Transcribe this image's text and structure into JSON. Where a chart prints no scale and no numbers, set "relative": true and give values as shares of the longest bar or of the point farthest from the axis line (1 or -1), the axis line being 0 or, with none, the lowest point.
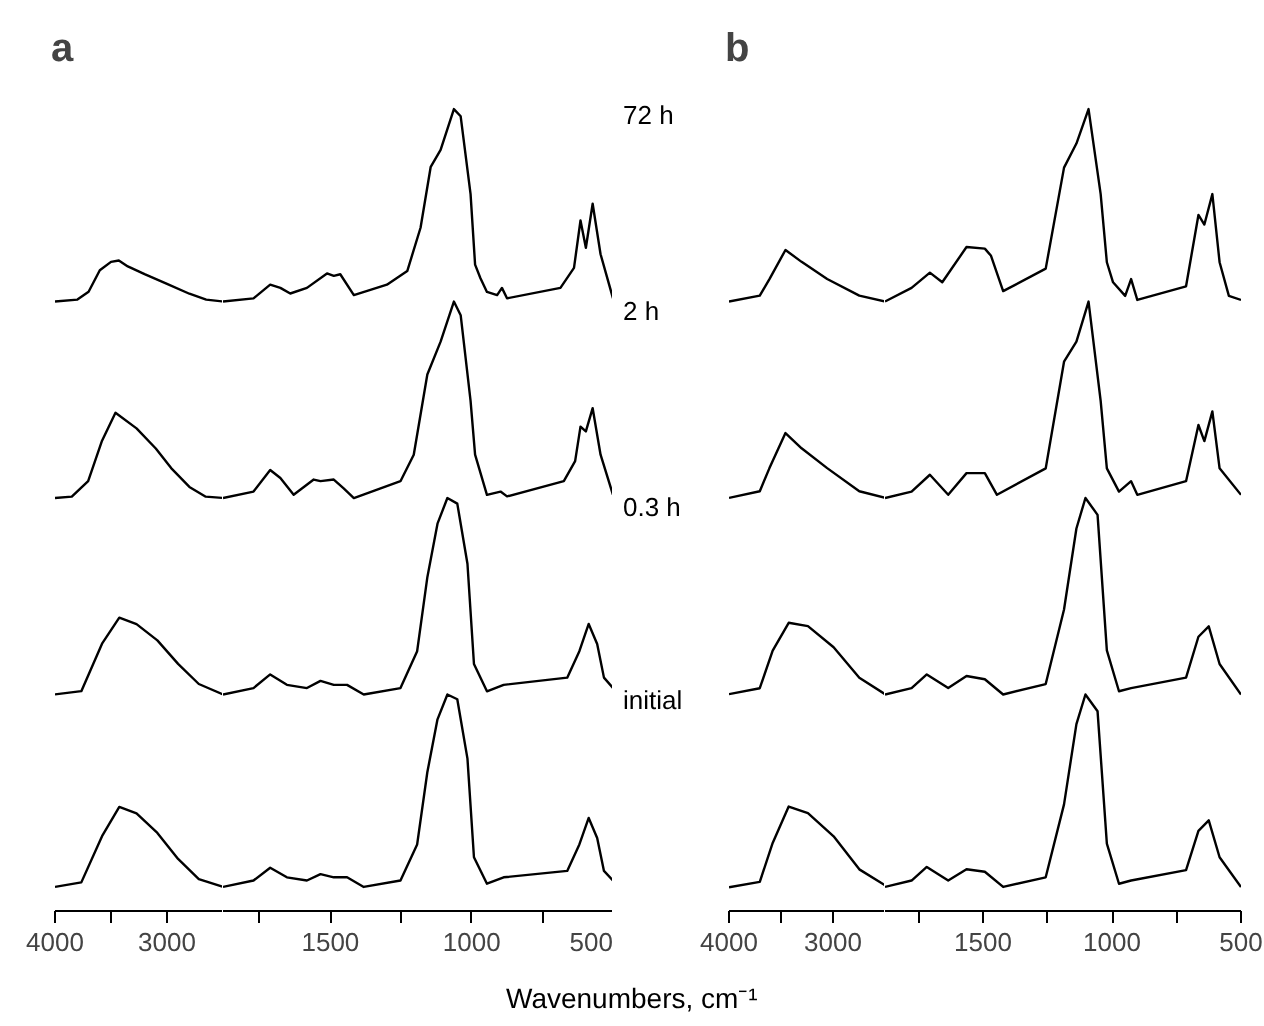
{
  "chart_data": [
    {
      "type": "line",
      "title": "a",
      "relative": true,
      "grid": false,
      "tick_labels": "x",
      "xlim": [
        4000,
        2500
      ],
      "xticks": [
        4000,
        {
          "value": 3500,
          "label": null
        },
        3000
      ],
      "series": [
        {
          "color": "#000000",
          "x": [
            4000,
            3800,
            3700,
            3600,
            3500,
            3430,
            3350,
            3200,
            3000,
            2800,
            2650,
            2500
          ],
          "values": [
            0.937,
            0.94,
            0.952,
            0.985,
            0.998,
            1.0,
            0.991,
            0.979,
            0.964,
            0.949,
            0.94,
            0.937
          ]
        },
        {
          "color": "#000000",
          "x": [
            4000,
            3850,
            3704,
            3580,
            3460,
            3272,
            3100,
            2963,
            2800,
            2654,
            2500
          ],
          "values": [
            0.635,
            0.637,
            0.661,
            0.723,
            0.766,
            0.742,
            0.711,
            0.681,
            0.652,
            0.637,
            0.635
          ]
        },
        {
          "color": "#000000",
          "x": [
            4000,
            3765,
            3580,
            3426,
            3272,
            3086,
            2901,
            2716,
            2500
          ],
          "values": [
            0.333,
            0.338,
            0.411,
            0.451,
            0.441,
            0.416,
            0.38,
            0.349,
            0.333
          ]
        },
        {
          "color": "#000000",
          "x": [
            4000,
            3765,
            3580,
            3426,
            3272,
            3086,
            2901,
            2716,
            2500
          ],
          "values": [
            0.037,
            0.044,
            0.115,
            0.16,
            0.15,
            0.12,
            0.08,
            0.049,
            0.037
          ]
        }
      ]
    },
    {
      "type": "line",
      "xlabel": "Wavenumbers, cm⁻¹",
      "relative": true,
      "grid": false,
      "tick_labels": "x",
      "xlim": [
        1880,
        500
      ],
      "xticks": [
        {
          "value": 1750,
          "label": null
        },
        1500,
        {
          "value": 1250,
          "label": null
        },
        1000,
        {
          "value": 750,
          "label": null
        },
        500
      ],
      "series": [
        {
          "name": "72 h",
          "color": "#000000",
          "x": [
            1880,
            1772,
            1713,
            1677,
            1642,
            1583,
            1512,
            1488,
            1465,
            1417,
            1300,
            1228,
            1181,
            1145,
            1110,
            1063,
            1039,
            1004,
            988,
            969,
            946,
            910,
            893,
            875,
            686,
            638,
            615,
            596,
            572,
            544,
            500
          ],
          "values": [
            0.76,
            0.764,
            0.781,
            0.777,
            0.77,
            0.777,
            0.795,
            0.792,
            0.794,
            0.768,
            0.781,
            0.798,
            0.852,
            0.928,
            0.949,
            1.0,
            0.991,
            0.894,
            0.806,
            0.789,
            0.772,
            0.768,
            0.777,
            0.764,
            0.777,
            0.802,
            0.861,
            0.827,
            0.882,
            0.819,
            0.764
          ]
        },
        {
          "name": "2 h",
          "color": "#000000",
          "x": [
            1880,
            1772,
            1713,
            1677,
            1630,
            1559,
            1535,
            1488,
            1453,
            1417,
            1252,
            1205,
            1157,
            1110,
            1063,
            1039,
            1004,
            988,
            946,
            898,
            875,
            674,
            634,
            615,
            596,
            572,
            544,
            500
          ],
          "values": [
            0.515,
            0.523,
            0.55,
            0.54,
            0.519,
            0.538,
            0.536,
            0.538,
            0.527,
            0.515,
            0.536,
            0.569,
            0.669,
            0.71,
            0.76,
            0.743,
            0.636,
            0.569,
            0.519,
            0.523,
            0.517,
            0.536,
            0.561,
            0.604,
            0.598,
            0.627,
            0.569,
            0.519
          ]
        },
        {
          "name": "0.3 h",
          "color": "#000000",
          "x": [
            1880,
            1772,
            1713,
            1654,
            1583,
            1535,
            1488,
            1441,
            1382,
            1252,
            1193,
            1157,
            1121,
            1086,
            1051,
            1015,
            992,
            946,
            887,
            662,
            619,
            586,
            556,
            532,
            500
          ],
          "values": [
            0.27,
            0.278,
            0.295,
            0.282,
            0.278,
            0.287,
            0.282,
            0.282,
            0.27,
            0.278,
            0.324,
            0.416,
            0.483,
            0.515,
            0.508,
            0.433,
            0.308,
            0.274,
            0.282,
            0.291,
            0.324,
            0.358,
            0.333,
            0.291,
            0.278
          ]
        },
        {
          "name": "initial",
          "color": "#000000",
          "x": [
            1880,
            1772,
            1713,
            1654,
            1583,
            1535,
            1488,
            1441,
            1382,
            1252,
            1193,
            1157,
            1121,
            1086,
            1051,
            1015,
            992,
            946,
            887,
            662,
            619,
            586,
            556,
            532,
            500
          ],
          "values": [
            0.03,
            0.038,
            0.054,
            0.042,
            0.038,
            0.046,
            0.042,
            0.042,
            0.03,
            0.038,
            0.083,
            0.173,
            0.239,
            0.27,
            0.264,
            0.19,
            0.067,
            0.034,
            0.042,
            0.05,
            0.083,
            0.116,
            0.091,
            0.05,
            0.038
          ]
        }
      ]
    },
    {
      "type": "line",
      "title": "b",
      "relative": true,
      "grid": false,
      "tick_labels": "x",
      "xlim": [
        4000,
        2500
      ],
      "xticks": [
        4000,
        {
          "value": 3500,
          "label": null
        },
        3000
      ],
      "series": [
        {
          "color": "#000000",
          "x": [
            4000,
            3704,
            3611,
            3457,
            3302,
            3056,
            2747,
            2500
          ],
          "values": [
            0.922,
            0.931,
            0.956,
            1.0,
            0.982,
            0.956,
            0.931,
            0.922
          ]
        },
        {
          "color": "#000000",
          "x": [
            4000,
            3704,
            3611,
            3457,
            3302,
            3056,
            2747,
            2500
          ],
          "values": [
            0.625,
            0.635,
            0.67,
            0.723,
            0.7,
            0.67,
            0.635,
            0.625
          ]
        },
        {
          "color": "#000000",
          "x": [
            4000,
            3704,
            3580,
            3426,
            3241,
            2994,
            2747,
            2500
          ],
          "values": [
            0.328,
            0.337,
            0.394,
            0.436,
            0.431,
            0.399,
            0.353,
            0.328
          ]
        },
        {
          "color": "#000000",
          "x": [
            4000,
            3704,
            3580,
            3426,
            3241,
            2994,
            2747,
            2500
          ],
          "values": [
            0.036,
            0.044,
            0.103,
            0.158,
            0.148,
            0.113,
            0.063,
            0.039
          ]
        }
      ]
    },
    {
      "type": "line",
      "relative": true,
      "grid": false,
      "tick_labels": "x",
      "xlim": [
        1880,
        500
      ],
      "xticks": [
        {
          "value": 1750,
          "label": null
        },
        1500,
        {
          "value": 1250,
          "label": null
        },
        1000,
        {
          "value": 750,
          "label": null
        },
        500
      ],
      "series": [
        {
          "color": "#000000",
          "x": [
            1880,
            1777,
            1706,
            1658,
            1564,
            1493,
            1469,
            1422,
            1257,
            1186,
            1138,
            1091,
            1044,
            1020,
            996,
            949,
            926,
            902,
            713,
            665,
            642,
            611,
            583,
            547,
            500
          ],
          "values": [
            0.76,
            0.777,
            0.796,
            0.784,
            0.828,
            0.826,
            0.817,
            0.773,
            0.801,
            0.927,
            0.957,
            1.0,
            0.894,
            0.809,
            0.784,
            0.767,
            0.788,
            0.762,
            0.779,
            0.868,
            0.856,
            0.894,
            0.809,
            0.767,
            0.762
          ]
        },
        {
          "color": "#000000",
          "x": [
            1880,
            1777,
            1706,
            1635,
            1564,
            1493,
            1446,
            1257,
            1186,
            1138,
            1091,
            1044,
            1020,
            973,
            926,
            902,
            713,
            665,
            642,
            611,
            583,
            500
          ],
          "values": [
            0.515,
            0.523,
            0.544,
            0.519,
            0.546,
            0.546,
            0.519,
            0.552,
            0.685,
            0.71,
            0.76,
            0.636,
            0.552,
            0.523,
            0.536,
            0.519,
            0.536,
            0.606,
            0.586,
            0.623,
            0.552,
            0.519
          ]
        },
        {
          "color": "#000000",
          "x": [
            1880,
            1777,
            1718,
            1635,
            1564,
            1493,
            1422,
            1257,
            1186,
            1138,
            1103,
            1056,
            1020,
            973,
            926,
            713,
            665,
            625,
            583,
            500
          ],
          "values": [
            0.27,
            0.278,
            0.295,
            0.278,
            0.293,
            0.289,
            0.27,
            0.283,
            0.376,
            0.477,
            0.515,
            0.494,
            0.325,
            0.274,
            0.278,
            0.291,
            0.342,
            0.355,
            0.308,
            0.27
          ]
        },
        {
          "color": "#000000",
          "x": [
            1880,
            1777,
            1718,
            1635,
            1564,
            1493,
            1422,
            1257,
            1186,
            1138,
            1103,
            1056,
            1020,
            973,
            926,
            713,
            665,
            625,
            583,
            500
          ],
          "values": [
            0.03,
            0.038,
            0.055,
            0.038,
            0.052,
            0.049,
            0.03,
            0.042,
            0.133,
            0.233,
            0.27,
            0.249,
            0.084,
            0.034,
            0.038,
            0.051,
            0.1,
            0.113,
            0.067,
            0.03
          ]
        }
      ]
    }
  ]
}
